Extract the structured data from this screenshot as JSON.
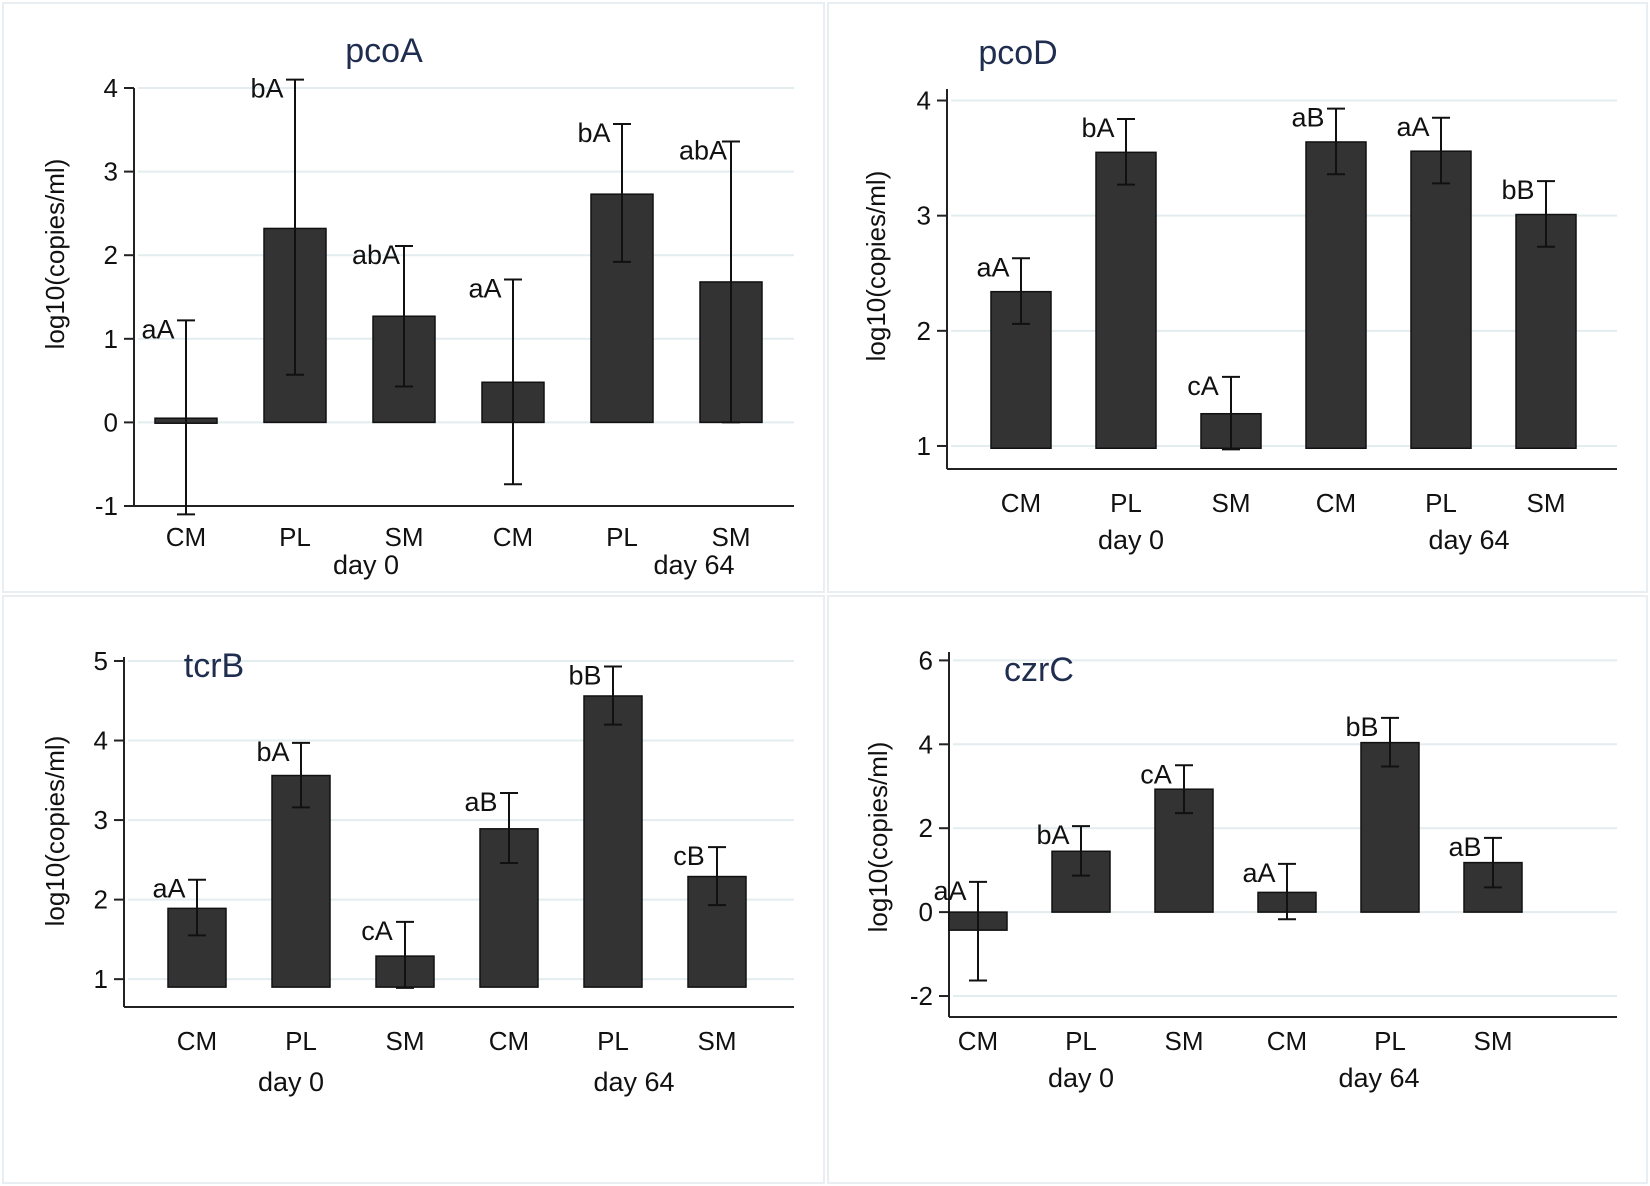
{
  "chart_data": [
    {
      "type": "bar",
      "title": "pcoA",
      "ylabel": "log10(copies/ml)",
      "ylim": [
        -1,
        4
      ],
      "yticks": [
        -1,
        0,
        1,
        2,
        3,
        4
      ],
      "baseline": 0,
      "categories": [
        "CM",
        "PL",
        "SM",
        "CM",
        "PL",
        "SM"
      ],
      "groups": [
        "day 0",
        "day 64"
      ],
      "values": [
        0.05,
        2.32,
        1.27,
        0.48,
        2.73,
        1.68
      ],
      "error_low": [
        -1.1,
        0.57,
        0.43,
        -0.74,
        1.92,
        0.0
      ],
      "error_high": [
        1.22,
        4.1,
        2.11,
        1.71,
        3.57,
        3.36
      ],
      "labels": [
        "aA",
        "bA",
        "abA",
        "aA",
        "bA",
        "abA"
      ]
    },
    {
      "type": "bar",
      "title": "pcoD",
      "ylabel": "log10(copies/ml)",
      "ylim": [
        0.8,
        4.1
      ],
      "yticks": [
        1,
        2,
        3,
        4
      ],
      "baseline": 0.98,
      "categories": [
        "CM",
        "PL",
        "SM",
        "CM",
        "PL",
        "SM"
      ],
      "groups": [
        "day 0",
        "day 64"
      ],
      "values": [
        2.34,
        3.55,
        1.28,
        3.64,
        3.56,
        3.01
      ],
      "error_low": [
        2.06,
        3.27,
        0.97,
        3.36,
        3.28,
        2.73
      ],
      "error_high": [
        2.63,
        3.84,
        1.6,
        3.93,
        3.85,
        3.3
      ],
      "labels": [
        "aA",
        "bA",
        "cA",
        "aB",
        "aA",
        "bB"
      ]
    },
    {
      "type": "bar",
      "title": "tcrB",
      "ylabel": "log10(copies/ml)",
      "ylim": [
        0.65,
        5.05
      ],
      "yticks": [
        1,
        2,
        3,
        4,
        5
      ],
      "baseline": 0.9,
      "categories": [
        "CM",
        "PL",
        "SM",
        "CM",
        "PL",
        "SM"
      ],
      "groups": [
        "day 0",
        "day 64"
      ],
      "values": [
        1.89,
        3.56,
        1.29,
        2.89,
        4.56,
        2.29
      ],
      "error_low": [
        1.55,
        3.16,
        0.89,
        2.46,
        4.2,
        1.93
      ],
      "error_high": [
        2.25,
        3.97,
        1.72,
        3.34,
        4.93,
        2.66
      ],
      "labels": [
        "aA",
        "bA",
        "cA",
        "aB",
        "bB",
        "cB"
      ]
    },
    {
      "type": "bar",
      "title": "czrC",
      "ylabel": "log10(copies/ml)",
      "ylim": [
        -2.5,
        6.2
      ],
      "yticks": [
        -2,
        0,
        2,
        4,
        6
      ],
      "baseline": 0,
      "categories": [
        "CM",
        "PL",
        "SM",
        "CM",
        "PL",
        "SM"
      ],
      "groups": [
        "day 0",
        "day 64"
      ],
      "values": [
        -0.43,
        1.45,
        2.93,
        0.47,
        4.04,
        1.18
      ],
      "error_low": [
        -1.63,
        0.87,
        2.36,
        -0.17,
        3.47,
        0.59
      ],
      "error_high": [
        0.72,
        2.05,
        3.5,
        1.15,
        4.63,
        1.77
      ],
      "labels": [
        "aA",
        "bA",
        "cA",
        "aA",
        "bB",
        "aB"
      ]
    }
  ]
}
